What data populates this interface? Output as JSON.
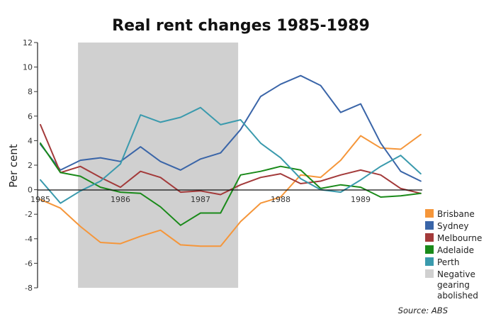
{
  "chart_data": {
    "type": "line",
    "title": "Real rent changes 1985-1989",
    "ylabel": "Per cent",
    "xlabel": "",
    "ylim": [
      -8,
      12
    ],
    "y_ticks": [
      12,
      10,
      8,
      6,
      4,
      2,
      0,
      -2,
      -4,
      -6,
      -8
    ],
    "xlim": [
      1985.0,
      1989.75
    ],
    "x_ticks": [
      "1985",
      "1986",
      "1987",
      "1988",
      "1989"
    ],
    "x": [
      1985.0,
      1985.25,
      1985.5,
      1985.75,
      1986.0,
      1986.25,
      1986.5,
      1986.75,
      1987.0,
      1987.25,
      1987.5,
      1987.75,
      1988.0,
      1988.25,
      1988.5,
      1988.75,
      1989.0,
      1989.25,
      1989.5,
      1989.75
    ],
    "shaded_region": {
      "label": "Negative gearing abolished",
      "x_start": 1985.47,
      "x_end": 1987.47,
      "color": "#d0d0d0"
    },
    "series": [
      {
        "name": "Brisbane",
        "color": "#f5963a",
        "values": [
          -0.8,
          -1.5,
          -3.0,
          -4.3,
          -4.4,
          -3.8,
          -3.3,
          -4.5,
          -4.6,
          -4.6,
          -2.6,
          -1.1,
          -0.6,
          1.2,
          1.0,
          2.4,
          4.4,
          3.4,
          3.3,
          4.5
        ]
      },
      {
        "name": "Sydney",
        "color": "#3a65a8",
        "values": [
          3.7,
          1.6,
          2.4,
          2.6,
          2.3,
          3.5,
          2.3,
          1.6,
          2.5,
          3.0,
          4.9,
          7.6,
          8.6,
          9.3,
          8.5,
          6.3,
          7.0,
          3.8,
          1.5,
          0.7
        ]
      },
      {
        "name": "Melbourne",
        "color": "#a33a3a",
        "values": [
          5.3,
          1.4,
          1.9,
          1.0,
          0.2,
          1.5,
          1.0,
          -0.2,
          -0.1,
          -0.4,
          0.4,
          1.0,
          1.3,
          0.5,
          0.7,
          1.2,
          1.6,
          1.2,
          0.1,
          -0.3
        ]
      },
      {
        "name": "Adelaide",
        "color": "#1a8a1a",
        "values": [
          3.8,
          1.4,
          1.1,
          0.2,
          -0.2,
          -0.3,
          -1.4,
          -2.9,
          -1.9,
          -1.9,
          1.2,
          1.5,
          1.9,
          1.6,
          0.1,
          0.4,
          0.2,
          -0.6,
          -0.5,
          -0.3
        ]
      },
      {
        "name": "Perth",
        "color": "#3a9aad",
        "values": [
          0.8,
          -1.1,
          -0.1,
          0.7,
          2.1,
          6.1,
          5.5,
          5.9,
          6.7,
          5.3,
          5.7,
          3.8,
          2.6,
          0.9,
          0.0,
          -0.2,
          0.8,
          1.9,
          2.8,
          1.3
        ]
      }
    ],
    "legend_position": "right",
    "source": "Source: ABS"
  }
}
